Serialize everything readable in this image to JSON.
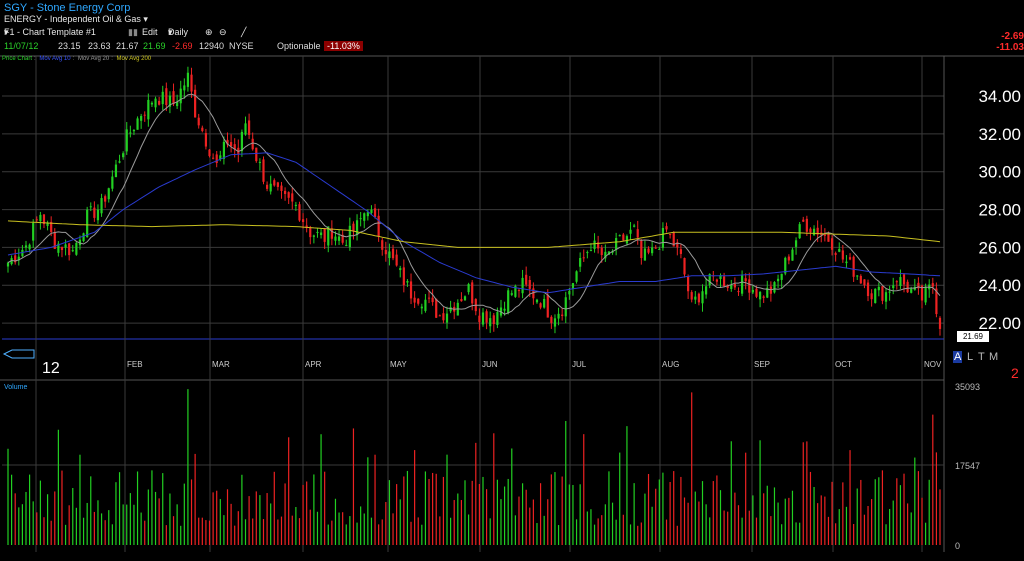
{
  "header": {
    "title": "SGY - Stone Energy Corp",
    "subtitle": "ENERGY - Independent Oil & Gas",
    "template": "F1 - Chart Template #1",
    "edit_label": "Edit",
    "interval": "Daily"
  },
  "quote": {
    "date": "11/07/12",
    "open": "23.15",
    "high": "23.63",
    "low": "21.67",
    "close": "21.69",
    "change": "-2.69",
    "volume": "12940",
    "exchange": "NYSE",
    "optionable": "Optionable",
    "pct_change": "-11.03%"
  },
  "right_labels": {
    "change": "-2.69",
    "pct": "-11.03"
  },
  "legend": {
    "price": "Price Chart",
    "ma10": "Mov Avg 10",
    "ma20": "Mov Avg 20",
    "ma200": "Mov Avg 200"
  },
  "colors": {
    "up": "#22d022",
    "down": "#ee2222",
    "ma10": "#9a9a9a",
    "ma20": "#2a3bd0",
    "ma200": "#c8c020",
    "title": "#2fa8ff",
    "grid": "#3a3a3a"
  },
  "last_price_tag": "21.69",
  "year_label": "12",
  "altm": [
    "A",
    "L",
    "T",
    "M"
  ],
  "volume_label": "Volume",
  "chart_data": {
    "type": "candlestick",
    "y_ticks": [
      "34.00",
      "32.00",
      "30.00",
      "28.00",
      "26.00",
      "24.00",
      "22.00"
    ],
    "ylim": [
      21,
      35.8
    ],
    "x_ticks": [
      "FEB",
      "MAR",
      "APR",
      "MAY",
      "JUN",
      "JUL",
      "AUG",
      "SEP",
      "OCT",
      "NOV"
    ],
    "volume_ticks": [
      "35093",
      "17547",
      "0"
    ],
    "anchors": [
      [
        0,
        25.2
      ],
      [
        5,
        26.1
      ],
      [
        9,
        27.8
      ],
      [
        13,
        26.3
      ],
      [
        18,
        25.8
      ],
      [
        22,
        27.6
      ],
      [
        26,
        28.2
      ],
      [
        29,
        29.7
      ],
      [
        33,
        31.8
      ],
      [
        37,
        33.1
      ],
      [
        41,
        34.0
      ],
      [
        46,
        33.6
      ],
      [
        50,
        35.0
      ],
      [
        52,
        33.2
      ],
      [
        55,
        31.7
      ],
      [
        58,
        30.3
      ],
      [
        61,
        31.6
      ],
      [
        64,
        31.0
      ],
      [
        66,
        32.6
      ],
      [
        69,
        30.8
      ],
      [
        72,
        29.3
      ],
      [
        76,
        28.6
      ],
      [
        80,
        28.2
      ],
      [
        84,
        26.8
      ],
      [
        88,
        26.5
      ],
      [
        90,
        26.9
      ],
      [
        93,
        26.3
      ],
      [
        97,
        27.1
      ],
      [
        100,
        28.2
      ],
      [
        104,
        26.3
      ],
      [
        108,
        24.9
      ],
      [
        112,
        23.6
      ],
      [
        116,
        23.2
      ],
      [
        120,
        22.4
      ],
      [
        124,
        23.0
      ],
      [
        128,
        23.8
      ],
      [
        131,
        22.5
      ],
      [
        135,
        22.3
      ],
      [
        139,
        23.5
      ],
      [
        143,
        24.0
      ],
      [
        148,
        23.2
      ],
      [
        151,
        22.4
      ],
      [
        154,
        22.8
      ],
      [
        158,
        24.7
      ],
      [
        162,
        26.2
      ],
      [
        166,
        25.4
      ],
      [
        170,
        26.3
      ],
      [
        174,
        26.9
      ],
      [
        176,
        25.4
      ],
      [
        179,
        25.7
      ],
      [
        183,
        26.9
      ],
      [
        187,
        25.4
      ],
      [
        190,
        22.9
      ],
      [
        193,
        23.8
      ],
      [
        197,
        24.5
      ],
      [
        201,
        24.0
      ],
      [
        205,
        24.2
      ],
      [
        209,
        23.5
      ],
      [
        213,
        23.8
      ],
      [
        217,
        25.6
      ],
      [
        221,
        27.3
      ],
      [
        225,
        26.9
      ],
      [
        229,
        26.3
      ],
      [
        232,
        25.4
      ],
      [
        236,
        24.6
      ],
      [
        240,
        23.6
      ],
      [
        244,
        23.6
      ],
      [
        247,
        24.4
      ],
      [
        251,
        23.7
      ],
      [
        254,
        23.3
      ],
      [
        257,
        24.0
      ],
      [
        259,
        21.7
      ]
    ],
    "ma20": [
      [
        0,
        25.6
      ],
      [
        12,
        26.0
      ],
      [
        24,
        26.8
      ],
      [
        32,
        28.0
      ],
      [
        42,
        29.2
      ],
      [
        52,
        30.1
      ],
      [
        62,
        30.9
      ],
      [
        72,
        31.0
      ],
      [
        80,
        30.5
      ],
      [
        90,
        29.2
      ],
      [
        100,
        27.9
      ],
      [
        110,
        26.3
      ],
      [
        120,
        25.2
      ],
      [
        130,
        24.4
      ],
      [
        140,
        23.9
      ],
      [
        150,
        23.6
      ],
      [
        160,
        23.9
      ],
      [
        170,
        24.2
      ],
      [
        180,
        24.2
      ],
      [
        190,
        24.5
      ],
      [
        200,
        24.5
      ],
      [
        210,
        24.6
      ],
      [
        220,
        24.8
      ],
      [
        230,
        25.0
      ],
      [
        240,
        24.7
      ],
      [
        250,
        24.6
      ],
      [
        259,
        24.5
      ]
    ],
    "ma200": [
      [
        0,
        27.4
      ],
      [
        20,
        27.2
      ],
      [
        40,
        27.1
      ],
      [
        60,
        27.2
      ],
      [
        80,
        27.1
      ],
      [
        95,
        26.9
      ],
      [
        110,
        26.3
      ],
      [
        125,
        26.0
      ],
      [
        150,
        26.0
      ],
      [
        170,
        26.3
      ],
      [
        185,
        26.8
      ],
      [
        200,
        26.8
      ],
      [
        215,
        26.8
      ],
      [
        230,
        26.7
      ],
      [
        245,
        26.6
      ],
      [
        259,
        26.3
      ]
    ]
  }
}
